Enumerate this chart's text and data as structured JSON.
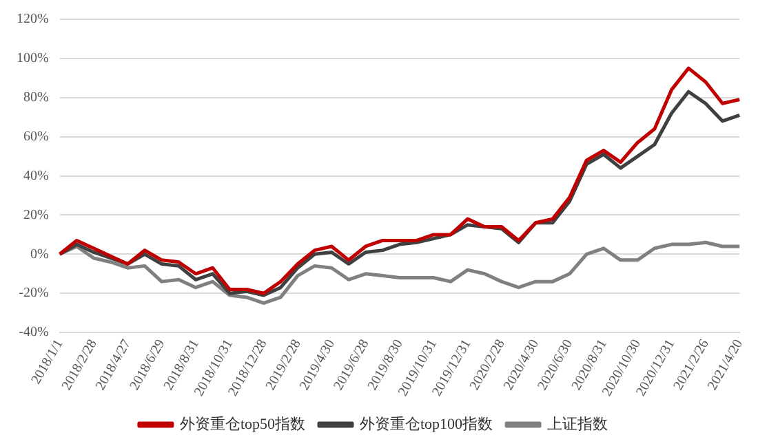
{
  "chart_data": {
    "type": "line",
    "categories": [
      "2018/1/1",
      null,
      "2018/2/28",
      null,
      "2018/4/27",
      null,
      "2018/6/29",
      null,
      "2018/8/31",
      null,
      "2018/10/31",
      null,
      "2018/12/28",
      null,
      "2019/2/28",
      null,
      "2019/4/30",
      null,
      "2019/6/28",
      null,
      "2019/8/30",
      null,
      "2019/10/31",
      null,
      "2019/12/31",
      null,
      "2020/2/28",
      null,
      "2020/4/30",
      null,
      "2020/6/30",
      null,
      "2020/8/31",
      null,
      "2020/10/30",
      null,
      "2020/12/31",
      null,
      "2021/2/26",
      null,
      "2021/4/20"
    ],
    "series": [
      {
        "name": "外资重仓top50指数",
        "color": "#c00000",
        "values": [
          0,
          7,
          3,
          -1,
          -5,
          2,
          -3,
          -4,
          -10,
          -7,
          -18,
          -18,
          -20,
          -14,
          -5,
          2,
          4,
          -3,
          4,
          7,
          7,
          7,
          10,
          10,
          18,
          14,
          14,
          7,
          16,
          18,
          29,
          48,
          53,
          47,
          57,
          64,
          84,
          95,
          88,
          77,
          79
        ]
      },
      {
        "name": "外资重仓top100指数",
        "color": "#404040",
        "values": [
          0,
          5,
          1,
          -2,
          -5,
          0,
          -5,
          -6,
          -13,
          -10,
          -20,
          -19,
          -21,
          -17,
          -7,
          0,
          1,
          -5,
          1,
          2,
          5,
          6,
          8,
          10,
          15,
          14,
          13,
          6,
          16,
          16,
          27,
          46,
          51,
          44,
          50,
          56,
          72,
          83,
          77,
          68,
          71
        ]
      },
      {
        "name": "上证指数",
        "color": "#808080",
        "values": [
          0,
          4,
          -2,
          -4,
          -7,
          -6,
          -14,
          -13,
          -17,
          -14,
          -21,
          -22,
          -25,
          -22,
          -11,
          -6,
          -7,
          -13,
          -10,
          -11,
          -12,
          -12,
          -12,
          -14,
          -8,
          -10,
          -14,
          -17,
          -14,
          -14,
          -10,
          0,
          3,
          -3,
          -3,
          3,
          5,
          5,
          6,
          4,
          4
        ]
      }
    ],
    "ylim": [
      -40,
      120
    ],
    "yticks": [
      {
        "value": -40,
        "label": "-40%"
      },
      {
        "value": -20,
        "label": "-20%"
      },
      {
        "value": 0,
        "label": "0%"
      },
      {
        "value": 20,
        "label": "20%"
      },
      {
        "value": 40,
        "label": "40%"
      },
      {
        "value": 60,
        "label": "60%"
      },
      {
        "value": 80,
        "label": "80%"
      },
      {
        "value": 100,
        "label": "100%"
      },
      {
        "value": 120,
        "label": "120%"
      }
    ],
    "grid": "y",
    "legend": "bottom",
    "marker": "none",
    "line_style": "solid"
  }
}
